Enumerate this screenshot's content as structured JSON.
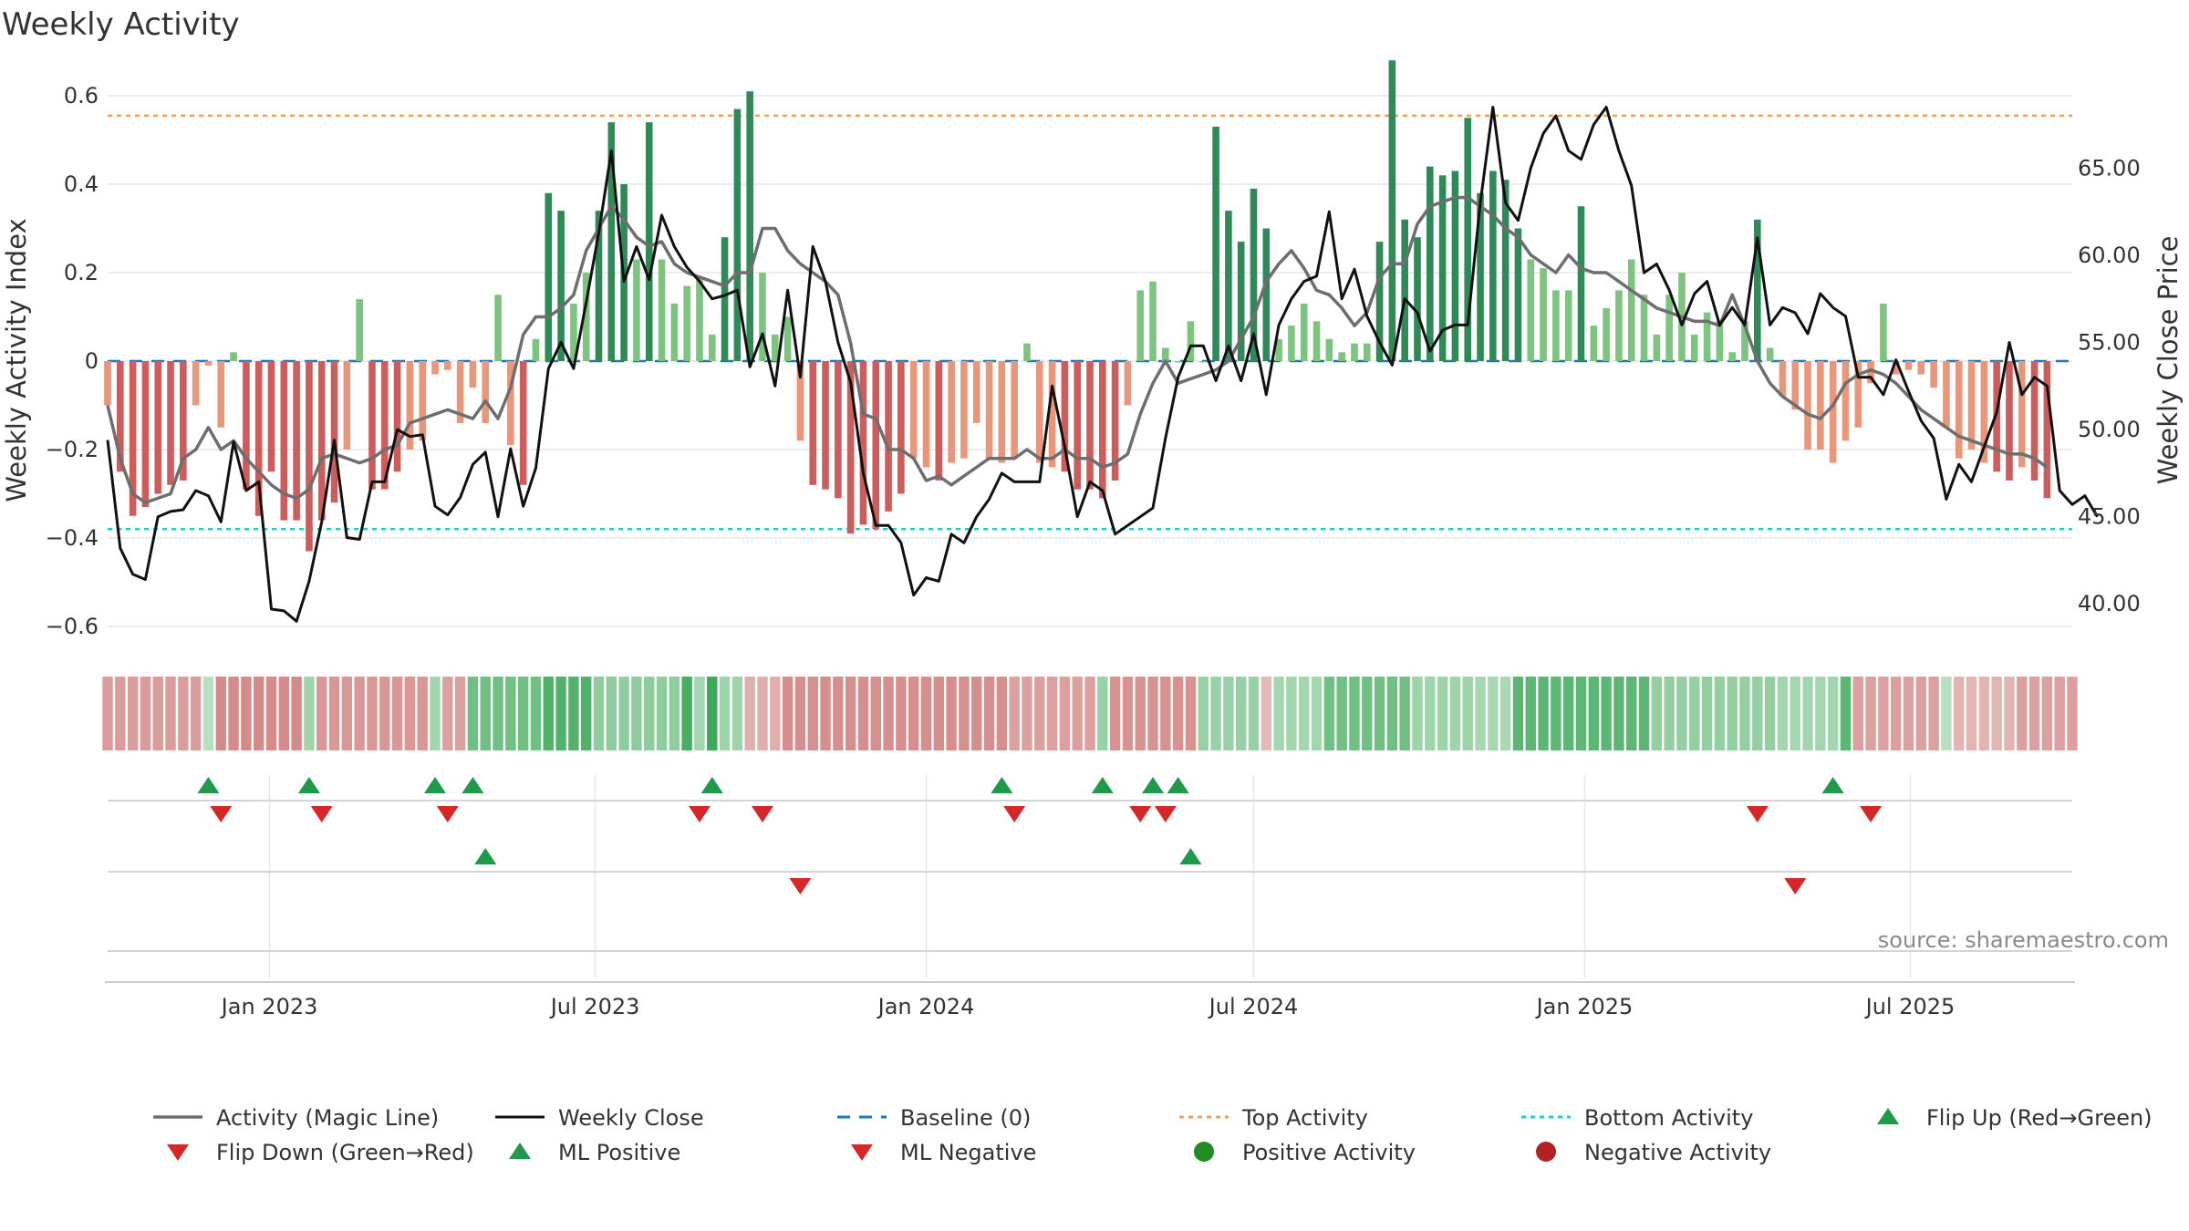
{
  "chart_data": {
    "type": "bar",
    "title": "Weekly Activity",
    "ylabel": "Weekly Activity Index",
    "y2label": "Weekly Close Price",
    "ylim": [
      -0.66,
      0.66
    ],
    "y2lim": [
      37.5,
      70.2
    ],
    "yticks": [
      {
        "value": 0.6,
        "label": "0.6"
      },
      {
        "value": 0.4,
        "label": "0.4"
      },
      {
        "value": 0.2,
        "label": "0.2"
      },
      {
        "value": 0,
        "label": "0"
      },
      {
        "value": -0.2,
        "label": "−0.2"
      },
      {
        "value": -0.4,
        "label": "−0.4"
      },
      {
        "value": -0.6,
        "label": "−0.6"
      }
    ],
    "y2ticks": [
      {
        "value": 65,
        "label": "65.00"
      },
      {
        "value": 60,
        "label": "60.00"
      },
      {
        "value": 55,
        "label": "55.00"
      },
      {
        "value": 50,
        "label": "50.00"
      },
      {
        "value": 45,
        "label": "45.00"
      },
      {
        "value": 40,
        "label": "40.00"
      }
    ],
    "start_date": "2022-10-03",
    "week_count": 157,
    "xticks": [
      {
        "date": "2023-01-01",
        "label": "Jan 2023"
      },
      {
        "date": "2023-07-01",
        "label": "Jul 2023"
      },
      {
        "date": "2024-01-01",
        "label": "Jan 2024"
      },
      {
        "date": "2024-07-01",
        "label": "Jul 2024"
      },
      {
        "date": "2025-01-01",
        "label": "Jan 2025"
      },
      {
        "date": "2025-07-01",
        "label": "Jul 2025"
      }
    ],
    "top_activity": 0.555,
    "bottom_activity": -0.38,
    "legend_position": "bottom",
    "source_text": "source: sharemaestro.com",
    "colors": {
      "pos_strong": "#2e8b57",
      "pos_weak": "#7cc47f",
      "neg_strong": "#cd5c5c",
      "neg_weak": "#e9967a",
      "magic_line": "#6e6e6e",
      "close": "#111111",
      "baseline": "#1f77b4",
      "top": "#e8a25a",
      "bottom": "#2cc9c9",
      "flip_up": "#1e9a4a",
      "flip_down": "#d62728",
      "pos_dot": "#228b22",
      "neg_dot": "#b22222"
    },
    "segments": [
      {
        "s": 0,
        "e": 7,
        "a": -0.22
      },
      {
        "s": 8,
        "e": 8,
        "a": 0.0
      },
      {
        "s": 9,
        "e": 15,
        "a": -0.32
      },
      {
        "s": 16,
        "e": 16,
        "a": 0.12
      },
      {
        "s": 17,
        "e": 25,
        "a": -0.25
      },
      {
        "s": 26,
        "e": 26,
        "a": 0.1
      },
      {
        "s": 27,
        "e": 28,
        "a": -0.2
      },
      {
        "s": 29,
        "e": 34,
        "a": 0.35
      },
      {
        "s": 35,
        "e": 38,
        "a": 0.5
      },
      {
        "s": 39,
        "e": 45,
        "a": 0.2
      },
      {
        "s": 46,
        "e": 46,
        "a": 0.55
      },
      {
        "s": 47,
        "e": 47,
        "a": 0.1
      },
      {
        "s": 48,
        "e": 48,
        "a": 0.6
      },
      {
        "s": 49,
        "e": 50,
        "a": 0.12
      },
      {
        "s": 51,
        "e": 53,
        "a": -0.12
      },
      {
        "s": 54,
        "e": 71,
        "a": -0.3
      },
      {
        "s": 72,
        "e": 78,
        "a": -0.2
      },
      {
        "s": 79,
        "e": 79,
        "a": 0.15
      },
      {
        "s": 80,
        "e": 86,
        "a": -0.28
      },
      {
        "s": 87,
        "e": 91,
        "a": 0.15
      },
      {
        "s": 92,
        "e": 92,
        "a": -0.05
      },
      {
        "s": 93,
        "e": 96,
        "a": 0.1
      },
      {
        "s": 97,
        "e": 103,
        "a": 0.35
      },
      {
        "s": 104,
        "e": 108,
        "a": 0.12
      },
      {
        "s": 109,
        "e": 111,
        "a": 0.08
      },
      {
        "s": 112,
        "e": 122,
        "a": 0.45
      },
      {
        "s": 123,
        "e": 132,
        "a": 0.18
      },
      {
        "s": 133,
        "e": 137,
        "a": 0.1
      },
      {
        "s": 138,
        "e": 138,
        "a": 0.45
      },
      {
        "s": 139,
        "e": 145,
        "a": -0.2
      },
      {
        "s": 146,
        "e": 146,
        "a": 0.0
      },
      {
        "s": 147,
        "e": 151,
        "a": -0.08
      },
      {
        "s": 152,
        "e": 156,
        "a": -0.2
      }
    ],
    "activity": [
      -0.1,
      -0.25,
      -0.35,
      -0.33,
      -0.3,
      -0.28,
      -0.27,
      -0.1,
      -0.01,
      -0.15,
      0.02,
      -0.29,
      -0.35,
      -0.25,
      -0.36,
      -0.36,
      -0.43,
      -0.36,
      -0.32,
      -0.2,
      0.14,
      -0.29,
      -0.29,
      -0.25,
      -0.2,
      -0.18,
      -0.03,
      -0.02,
      -0.14,
      -0.06,
      -0.14,
      0.15,
      -0.19,
      -0.28,
      0.05,
      0.38,
      0.34,
      0.13,
      0.2,
      0.34,
      0.54,
      0.4,
      0.23,
      0.54,
      0.23,
      0.13,
      0.17,
      0.19,
      0.06,
      0.28,
      0.57,
      0.61,
      0.2,
      0.06,
      0.1,
      -0.18,
      -0.28,
      -0.29,
      -0.31,
      -0.39,
      -0.37,
      -0.38,
      -0.34,
      -0.3,
      -0.22,
      -0.24,
      -0.27,
      -0.23,
      -0.22,
      -0.14,
      -0.22,
      -0.23,
      -0.22,
      0.04,
      -0.23,
      -0.24,
      -0.25,
      -0.29,
      -0.29,
      -0.31,
      -0.27,
      -0.1,
      0.16,
      0.18,
      0.03,
      0.0,
      0.09,
      0.0,
      0.53,
      0.34,
      0.27,
      0.39,
      0.3,
      0.05,
      0.08,
      0.13,
      0.09,
      0.05,
      0.02,
      0.04,
      0.04,
      0.27,
      0.68,
      0.32,
      0.28,
      0.44,
      0.42,
      0.43,
      0.55,
      0.38,
      0.43,
      0.41,
      0.3,
      0.23,
      0.21,
      0.16,
      0.16,
      0.35,
      0.08,
      0.12,
      0.16,
      0.23,
      0.15,
      0.06,
      0.15,
      0.2,
      0.06,
      0.11,
      0.09,
      0.02,
      0.09,
      0.32,
      0.03,
      -0.08,
      -0.11,
      -0.2,
      -0.2,
      -0.23,
      -0.18,
      -0.15,
      -0.05,
      0.13,
      -0.03,
      -0.02,
      -0.03,
      -0.06,
      -0.15,
      -0.22,
      -0.2,
      -0.23,
      -0.25,
      -0.27,
      -0.24,
      -0.27,
      -0.31
    ],
    "magic": [
      -0.1,
      -0.22,
      -0.3,
      -0.32,
      -0.31,
      -0.3,
      -0.22,
      -0.2,
      -0.15,
      -0.2,
      -0.18,
      -0.22,
      -0.25,
      -0.28,
      -0.3,
      -0.31,
      -0.29,
      -0.22,
      -0.21,
      -0.22,
      -0.23,
      -0.22,
      -0.2,
      -0.19,
      -0.14,
      -0.13,
      -0.12,
      -0.11,
      -0.12,
      -0.13,
      -0.09,
      -0.13,
      -0.06,
      0.06,
      0.1,
      0.1,
      0.12,
      0.15,
      0.25,
      0.3,
      0.35,
      0.32,
      0.28,
      0.26,
      0.27,
      0.22,
      0.2,
      0.19,
      0.18,
      0.17,
      0.2,
      0.2,
      0.3,
      0.3,
      0.25,
      0.22,
      0.2,
      0.18,
      0.15,
      0.04,
      -0.12,
      -0.13,
      -0.2,
      -0.2,
      -0.22,
      -0.27,
      -0.26,
      -0.28,
      -0.26,
      -0.24,
      -0.22,
      -0.22,
      -0.22,
      -0.2,
      -0.22,
      -0.22,
      -0.2,
      -0.22,
      -0.22,
      -0.24,
      -0.23,
      -0.21,
      -0.12,
      -0.05,
      0.0,
      -0.05,
      -0.04,
      -0.03,
      -0.02,
      0.0,
      0.05,
      0.1,
      0.18,
      0.22,
      0.25,
      0.21,
      0.16,
      0.15,
      0.12,
      0.08,
      0.11,
      0.19,
      0.22,
      0.22,
      0.31,
      0.35,
      0.36,
      0.37,
      0.37,
      0.35,
      0.33,
      0.3,
      0.28,
      0.24,
      0.22,
      0.2,
      0.24,
      0.21,
      0.2,
      0.2,
      0.18,
      0.16,
      0.14,
      0.12,
      0.11,
      0.1,
      0.09,
      0.09,
      0.08,
      0.15,
      0.08,
      0.0,
      -0.05,
      -0.08,
      -0.1,
      -0.12,
      -0.13,
      -0.1,
      -0.05,
      -0.03,
      -0.02,
      -0.03,
      -0.05,
      -0.08,
      -0.11,
      -0.13,
      -0.15,
      -0.17,
      -0.18,
      -0.19,
      -0.2,
      -0.21,
      -0.21,
      -0.22,
      -0.24
    ],
    "close": [
      49.4,
      43.2,
      41.7,
      41.4,
      45.0,
      45.3,
      45.4,
      46.5,
      46.2,
      44.7,
      49.3,
      46.5,
      47.0,
      39.7,
      39.6,
      39.0,
      41.3,
      44.7,
      49.4,
      43.8,
      43.7,
      47.0,
      47.0,
      50.0,
      49.6,
      49.7,
      45.6,
      45.1,
      46.1,
      48.0,
      48.7,
      45.0,
      48.9,
      45.6,
      47.8,
      53.5,
      55.0,
      53.5,
      57.3,
      61.3,
      66.0,
      58.5,
      60.5,
      58.6,
      62.3,
      60.5,
      59.3,
      58.5,
      57.5,
      57.7,
      58.0,
      53.6,
      55.5,
      52.5,
      58.0,
      53.0,
      60.5,
      58.5,
      55.0,
      52.7,
      47.5,
      44.5,
      44.5,
      43.5,
      40.5,
      41.5,
      41.3,
      44.0,
      43.5,
      45.0,
      46.0,
      47.5,
      47.0,
      47.0,
      47.0,
      52.5,
      49.0,
      45.0,
      47.0,
      46.5,
      44.0,
      44.5,
      45.0,
      45.5,
      49.5,
      53.0,
      54.8,
      54.8,
      52.8,
      54.8,
      52.8,
      55.5,
      52.0,
      56.0,
      57.5,
      58.5,
      58.8,
      62.5,
      57.5,
      59.2,
      56.5,
      55.0,
      53.7,
      57.5,
      56.7,
      54.5,
      55.7,
      56.0,
      56.0,
      63.0,
      68.5,
      63.0,
      62.0,
      65.0,
      67.0,
      68.0,
      66.0,
      65.5,
      67.5,
      68.5,
      66.0,
      64.0,
      59.0,
      59.5,
      58.0,
      56.0,
      57.8,
      58.5,
      56.0,
      57.0,
      56.0,
      61.0,
      56.0,
      57.0,
      56.7,
      55.5,
      57.8,
      57.0,
      56.5,
      53.0,
      53.0,
      52.0,
      54.0,
      52.2,
      50.5,
      49.5,
      46.0,
      48.0,
      47.0,
      49.0,
      51.0,
      55.0,
      52.0,
      53.0,
      52.5,
      46.5,
      45.7,
      46.2,
      45.0
    ],
    "flip_up_weeks": [
      8,
      16,
      26,
      29,
      48,
      71,
      79,
      83,
      85,
      137
    ],
    "flip_down_weeks": [
      9,
      17,
      27,
      47,
      52,
      72,
      82,
      84,
      131,
      140
    ],
    "ml_positive_weeks": [
      30,
      86
    ],
    "ml_negative_weeks": [
      55,
      134
    ],
    "legend": [
      "Activity (Magic Line)",
      "Weekly Close",
      "Baseline (0)",
      "Top Activity",
      "Bottom Activity",
      "Flip Up (Red→Green)",
      "Flip Down (Green→Red)",
      "ML Positive",
      "ML Negative",
      "Positive Activity",
      "Negative Activity"
    ]
  }
}
